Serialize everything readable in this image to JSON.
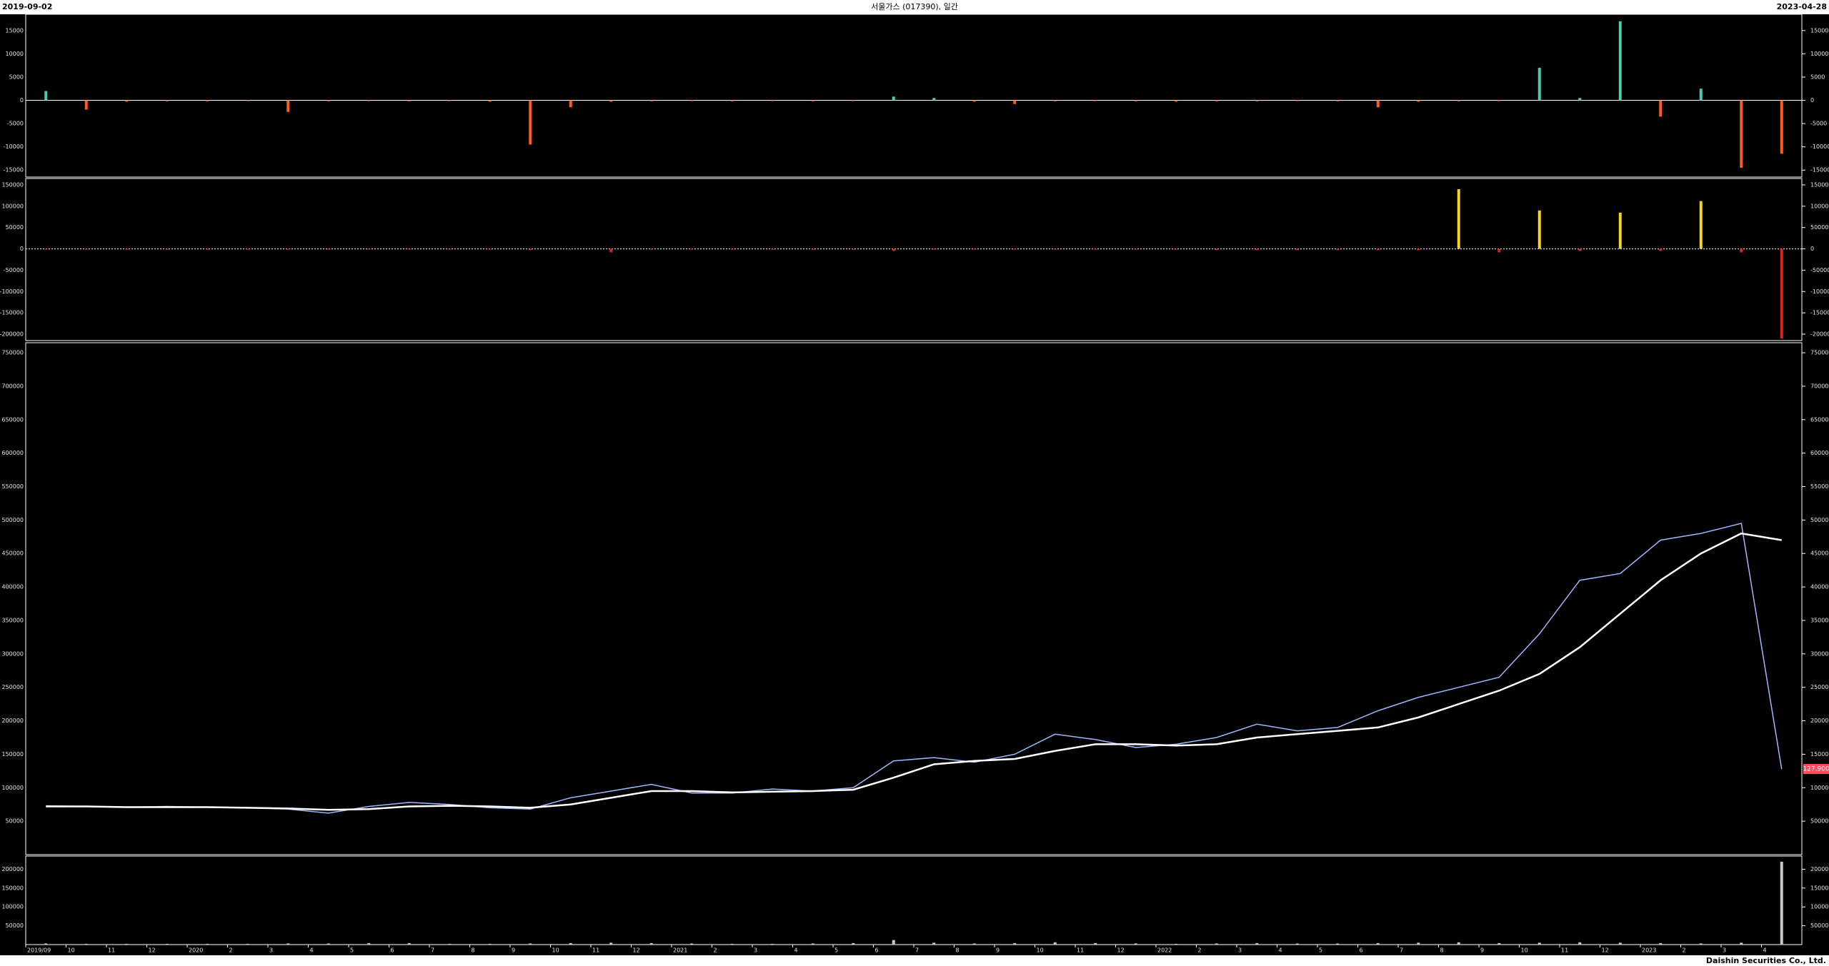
{
  "header": {
    "start_date": "2019-09-02",
    "title": "서울가스 (017390), 일간",
    "end_date": "2023-04-28"
  },
  "footer": "Daishin Securities Co., Ltd.",
  "chart_data": [
    {
      "type": "bar",
      "positive_color": "#4ec9b0",
      "negative_color": "#ff5a1f",
      "ylim": [
        -16500,
        18500
      ],
      "yticks": [
        15000,
        10000,
        5000,
        0,
        -5000,
        -10000,
        -15000
      ],
      "values": [
        2000,
        -2000,
        -300,
        -200,
        -200,
        -100,
        -2500,
        -200,
        -100,
        -200,
        -100,
        -300,
        -9500,
        -1500,
        -300,
        -200,
        -100,
        -200,
        -100,
        -200,
        -100,
        800,
        500,
        -300,
        -800,
        -200,
        -100,
        -200,
        -300,
        -200,
        -200,
        -100,
        -200,
        -1500,
        -300,
        -200,
        -100,
        7000,
        500,
        17000,
        -3500,
        2500,
        -14500,
        -11500
      ]
    },
    {
      "type": "bar",
      "positive_color": "#f5d328",
      "negative_color": "#e02020",
      "ylim": [
        -215000,
        165000
      ],
      "yticks": [
        150000,
        100000,
        50000,
        0,
        -50000,
        -100000,
        -150000,
        -200000
      ],
      "values": [
        -1000,
        -1000,
        -1000,
        -1000,
        -1000,
        -1000,
        -1000,
        -1000,
        -1000,
        -1000,
        -1000,
        -1500,
        -3000,
        -1000,
        -8000,
        -1000,
        -1000,
        -1000,
        -1000,
        -1000,
        -1000,
        -5000,
        -1000,
        -1000,
        -1000,
        -1000,
        -1000,
        -1000,
        -1000,
        -3000,
        -3000,
        -3000,
        -3000,
        -3000,
        -3000,
        140000,
        -8000,
        90000,
        -5000,
        85000,
        -5000,
        112000,
        -8000,
        -210000
      ]
    },
    {
      "type": "line",
      "ylim": [
        0,
        765000
      ],
      "yticks": [
        50000,
        100000,
        150000,
        200000,
        250000,
        300000,
        350000,
        400000,
        450000,
        500000,
        550000,
        600000,
        650000,
        700000,
        750000
      ],
      "series": [
        {
          "color": "#9db8ff",
          "values": [
            73000,
            72000,
            71000,
            72000,
            71000,
            70000,
            68000,
            62000,
            72000,
            78000,
            75000,
            70000,
            68000,
            85000,
            95000,
            105000,
            92000,
            92000,
            98000,
            95000,
            100000,
            140000,
            145000,
            138000,
            150000,
            180000,
            172000,
            160000,
            165000,
            175000,
            195000,
            185000,
            190000,
            215000,
            235000,
            250000,
            265000,
            330000,
            410000,
            420000,
            470000,
            480000,
            495000,
            127900
          ]
        },
        {
          "color": "#ffffff",
          "values": [
            72000,
            72000,
            71000,
            71000,
            71000,
            70000,
            69000,
            67000,
            68000,
            72000,
            73000,
            72000,
            70000,
            75000,
            85000,
            95000,
            95000,
            93000,
            94000,
            95000,
            97000,
            115000,
            135000,
            140000,
            143000,
            155000,
            165000,
            165000,
            163000,
            165000,
            175000,
            180000,
            185000,
            190000,
            205000,
            225000,
            245000,
            270000,
            310000,
            360000,
            410000,
            450000,
            480000,
            470000
          ]
        }
      ],
      "last_label": "127,900"
    },
    {
      "type": "bar",
      "positive_color": "#c8c8c8",
      "negative_color": "#c8c8c8",
      "ylim": [
        0,
        235000
      ],
      "yticks": [
        50000,
        100000,
        150000,
        200000
      ],
      "values": [
        3000,
        2000,
        2000,
        2000,
        2000,
        2000,
        3000,
        3000,
        4000,
        4000,
        2000,
        2000,
        3000,
        4000,
        5000,
        4000,
        3000,
        2000,
        2000,
        3000,
        4000,
        12000,
        5000,
        3000,
        4000,
        6000,
        4000,
        3000,
        2000,
        3000,
        4000,
        3000,
        3000,
        4000,
        5000,
        6000,
        4000,
        5000,
        6000,
        5000,
        4000,
        3000,
        5000,
        220000
      ],
      "categories": [
        "2019/09",
        "10",
        "11",
        "12",
        "2020",
        "2",
        "3",
        "4",
        "5",
        "6",
        "7",
        "8",
        "9",
        "10",
        "11",
        "12",
        "2021",
        "2",
        "3",
        "4",
        "5",
        "6",
        "7",
        "8",
        "9",
        "10",
        "11",
        "12",
        "2022",
        "2",
        "3",
        "4",
        "5",
        "6",
        "7",
        "8",
        "9",
        "10",
        "11",
        "12",
        "2023",
        "2",
        "3",
        "4"
      ]
    }
  ]
}
